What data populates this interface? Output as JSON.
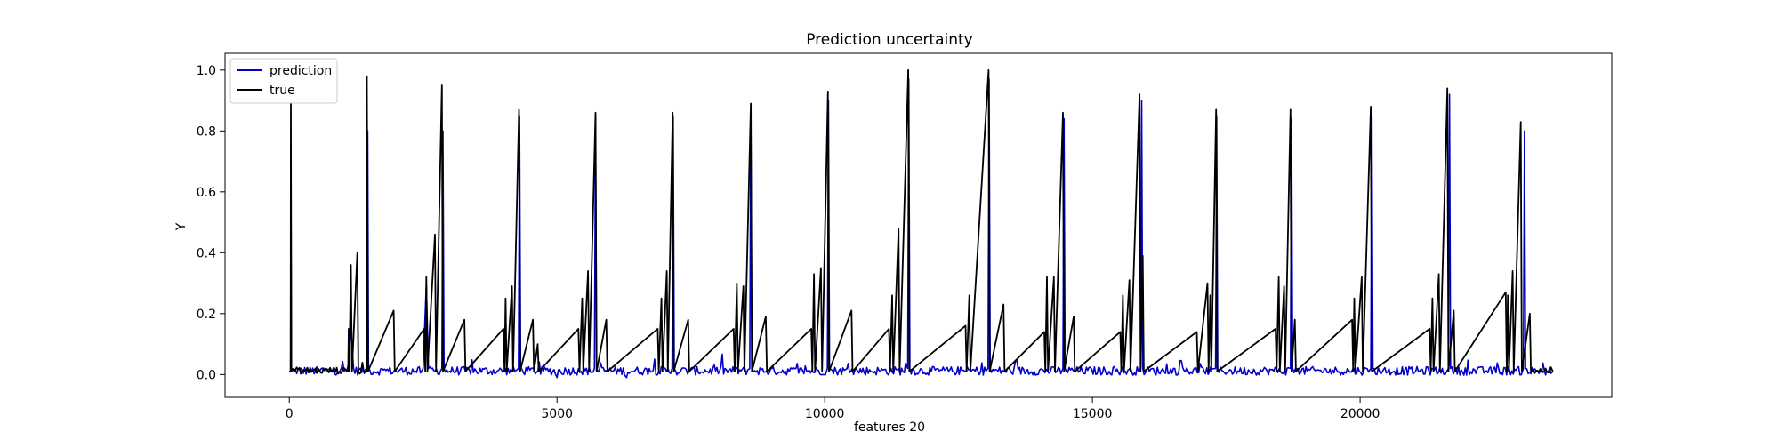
{
  "chart_data": {
    "type": "line",
    "title": "Prediction uncertainty",
    "xlabel": "features 20",
    "ylabel": "Y",
    "xlim": [
      -1200,
      24700
    ],
    "ylim": [
      -0.075,
      1.055
    ],
    "x_ticks": [
      0,
      5000,
      10000,
      15000,
      20000
    ],
    "x_tick_labels": [
      "0",
      "5000",
      "10000",
      "15000",
      "20000"
    ],
    "y_ticks": [
      0.0,
      0.2,
      0.4,
      0.6,
      0.8,
      1.0
    ],
    "y_tick_labels": [
      "0.0",
      "0.2",
      "0.4",
      "0.6",
      "0.8",
      "1.0"
    ],
    "grid": false,
    "legend_position": "top-left",
    "x_range": [
      0,
      23600
    ],
    "baseline": 0.01,
    "colors": {
      "prediction": "#0000cc",
      "true": "#000000"
    },
    "series": [
      {
        "name": "prediction",
        "color": "#0000cc",
        "points": [
          [
            0,
            0.01
          ],
          [
            25,
            0.01
          ],
          [
            30,
            0.75
          ],
          [
            40,
            0.02
          ],
          [
            600,
            0.02
          ],
          [
            1100,
            0.03
          ],
          [
            1150,
            0.15
          ],
          [
            1200,
            0.02
          ],
          [
            1450,
            0.02
          ],
          [
            1465,
            0.8
          ],
          [
            1480,
            0.02
          ],
          [
            2500,
            0.02
          ],
          [
            2560,
            0.3
          ],
          [
            2600,
            0.02
          ],
          [
            2850,
            0.02
          ],
          [
            2870,
            0.8
          ],
          [
            2890,
            0.02
          ],
          [
            4280,
            0.02
          ],
          [
            4300,
            0.85
          ],
          [
            4320,
            0.02
          ],
          [
            5000,
            -0.01
          ],
          [
            5400,
            0.02
          ],
          [
            5700,
            0.02
          ],
          [
            5720,
            0.84
          ],
          [
            5740,
            0.02
          ],
          [
            6300,
            -0.01
          ],
          [
            7150,
            0.02
          ],
          [
            7170,
            0.85
          ],
          [
            7190,
            0.02
          ],
          [
            8600,
            0.02
          ],
          [
            8620,
            0.87
          ],
          [
            8640,
            0.02
          ],
          [
            10050,
            0.02
          ],
          [
            10070,
            0.9
          ],
          [
            10090,
            0.02
          ],
          [
            11550,
            0.02
          ],
          [
            11570,
            0.97
          ],
          [
            11590,
            0.02
          ],
          [
            13050,
            0.02
          ],
          [
            13070,
            0.97
          ],
          [
            13090,
            0.02
          ],
          [
            14450,
            0.02
          ],
          [
            14470,
            0.84
          ],
          [
            14490,
            0.02
          ],
          [
            15900,
            0.02
          ],
          [
            15920,
            0.9
          ],
          [
            15940,
            0.02
          ],
          [
            17300,
            0.02
          ],
          [
            17320,
            0.85
          ],
          [
            17340,
            0.02
          ],
          [
            18700,
            0.02
          ],
          [
            18720,
            0.84
          ],
          [
            18740,
            0.02
          ],
          [
            20200,
            0.02
          ],
          [
            20220,
            0.85
          ],
          [
            20240,
            0.02
          ],
          [
            21650,
            0.02
          ],
          [
            21670,
            0.92
          ],
          [
            21690,
            0.02
          ],
          [
            23050,
            0.02
          ],
          [
            23070,
            0.8
          ],
          [
            23090,
            0.02
          ],
          [
            23600,
            0.01
          ]
        ]
      },
      {
        "name": "true",
        "color": "#000000",
        "points": [
          [
            0,
            0.01
          ],
          [
            25,
            0.01
          ],
          [
            30,
            0.89
          ],
          [
            40,
            0.01
          ],
          [
            1100,
            0.01
          ],
          [
            1110,
            0.15
          ],
          [
            1120,
            0.01
          ],
          [
            1150,
            0.36
          ],
          [
            1170,
            0.01
          ],
          [
            1270,
            0.4
          ],
          [
            1290,
            0.01
          ],
          [
            1440,
            0.01
          ],
          [
            1450,
            0.98
          ],
          [
            1470,
            0.01
          ],
          [
            1950,
            0.21
          ],
          [
            1970,
            0.01
          ],
          [
            2520,
            0.15
          ],
          [
            2540,
            0.01
          ],
          [
            2560,
            0.32
          ],
          [
            2580,
            0.01
          ],
          [
            2720,
            0.46
          ],
          [
            2740,
            0.01
          ],
          [
            2850,
            0.95
          ],
          [
            2870,
            0.01
          ],
          [
            3270,
            0.18
          ],
          [
            3290,
            0.01
          ],
          [
            4000,
            0.15
          ],
          [
            4020,
            0.01
          ],
          [
            4040,
            0.25
          ],
          [
            4060,
            0.01
          ],
          [
            4160,
            0.29
          ],
          [
            4180,
            0.01
          ],
          [
            4290,
            0.87
          ],
          [
            4310,
            0.01
          ],
          [
            4550,
            0.18
          ],
          [
            4570,
            0.01
          ],
          [
            4640,
            0.1
          ],
          [
            4660,
            0.01
          ],
          [
            5400,
            0.15
          ],
          [
            5420,
            0.01
          ],
          [
            5470,
            0.25
          ],
          [
            5490,
            0.01
          ],
          [
            5580,
            0.34
          ],
          [
            5600,
            0.01
          ],
          [
            5720,
            0.86
          ],
          [
            5740,
            0.01
          ],
          [
            5920,
            0.18
          ],
          [
            5940,
            0.01
          ],
          [
            6880,
            0.15
          ],
          [
            6900,
            0.01
          ],
          [
            6950,
            0.25
          ],
          [
            6970,
            0.01
          ],
          [
            7050,
            0.34
          ],
          [
            7070,
            0.01
          ],
          [
            7160,
            0.86
          ],
          [
            7180,
            0.01
          ],
          [
            7450,
            0.18
          ],
          [
            7470,
            0.01
          ],
          [
            8300,
            0.15
          ],
          [
            8320,
            0.01
          ],
          [
            8360,
            0.3
          ],
          [
            8380,
            0.01
          ],
          [
            8480,
            0.29
          ],
          [
            8500,
            0.01
          ],
          [
            8620,
            0.89
          ],
          [
            8640,
            0.01
          ],
          [
            8900,
            0.19
          ],
          [
            8920,
            0.01
          ],
          [
            9750,
            0.15
          ],
          [
            9770,
            0.01
          ],
          [
            9800,
            0.33
          ],
          [
            9820,
            0.01
          ],
          [
            9930,
            0.35
          ],
          [
            9950,
            0.01
          ],
          [
            10060,
            0.93
          ],
          [
            10080,
            0.01
          ],
          [
            10500,
            0.21
          ],
          [
            10520,
            0.01
          ],
          [
            11200,
            0.15
          ],
          [
            11220,
            0.01
          ],
          [
            11260,
            0.26
          ],
          [
            11280,
            0.01
          ],
          [
            11380,
            0.48
          ],
          [
            11400,
            0.01
          ],
          [
            11560,
            1.0
          ],
          [
            11580,
            0.01
          ],
          [
            12630,
            0.16
          ],
          [
            12650,
            0.01
          ],
          [
            12700,
            0.26
          ],
          [
            12720,
            0.01
          ],
          [
            13060,
            1.0
          ],
          [
            13080,
            0.01
          ],
          [
            13340,
            0.23
          ],
          [
            13360,
            0.01
          ],
          [
            14100,
            0.14
          ],
          [
            14120,
            0.01
          ],
          [
            14150,
            0.32
          ],
          [
            14170,
            0.01
          ],
          [
            14280,
            0.32
          ],
          [
            14300,
            0.01
          ],
          [
            14450,
            0.86
          ],
          [
            14470,
            0.01
          ],
          [
            14650,
            0.19
          ],
          [
            14670,
            0.01
          ],
          [
            15520,
            0.14
          ],
          [
            15540,
            0.01
          ],
          [
            15570,
            0.26
          ],
          [
            15590,
            0.01
          ],
          [
            15690,
            0.31
          ],
          [
            15710,
            0.01
          ],
          [
            15880,
            0.92
          ],
          [
            15900,
            0.01
          ],
          [
            15940,
            0.39
          ],
          [
            15960,
            0.01
          ],
          [
            16950,
            0.14
          ],
          [
            16970,
            0.01
          ],
          [
            17150,
            0.3
          ],
          [
            17170,
            0.01
          ],
          [
            17200,
            0.26
          ],
          [
            17220,
            0.01
          ],
          [
            17310,
            0.87
          ],
          [
            17330,
            0.01
          ],
          [
            18420,
            0.15
          ],
          [
            18440,
            0.01
          ],
          [
            18480,
            0.32
          ],
          [
            18500,
            0.01
          ],
          [
            18580,
            0.29
          ],
          [
            18600,
            0.01
          ],
          [
            18700,
            0.87
          ],
          [
            18720,
            0.01
          ],
          [
            18780,
            0.18
          ],
          [
            18800,
            0.01
          ],
          [
            19850,
            0.18
          ],
          [
            19870,
            0.01
          ],
          [
            19890,
            0.25
          ],
          [
            19910,
            0.01
          ],
          [
            20030,
            0.32
          ],
          [
            20050,
            0.01
          ],
          [
            20200,
            0.88
          ],
          [
            20220,
            0.01
          ],
          [
            21300,
            0.15
          ],
          [
            21320,
            0.01
          ],
          [
            21350,
            0.25
          ],
          [
            21370,
            0.01
          ],
          [
            21470,
            0.33
          ],
          [
            21490,
            0.01
          ],
          [
            21630,
            0.94
          ],
          [
            21650,
            0.01
          ],
          [
            21750,
            0.21
          ],
          [
            21770,
            0.01
          ],
          [
            22720,
            0.27
          ],
          [
            22740,
            0.01
          ],
          [
            22760,
            0.26
          ],
          [
            22780,
            0.01
          ],
          [
            22850,
            0.34
          ],
          [
            22870,
            0.01
          ],
          [
            23000,
            0.83
          ],
          [
            23020,
            0.01
          ],
          [
            23170,
            0.2
          ],
          [
            23190,
            0.01
          ],
          [
            23600,
            0.01
          ]
        ]
      }
    ]
  }
}
